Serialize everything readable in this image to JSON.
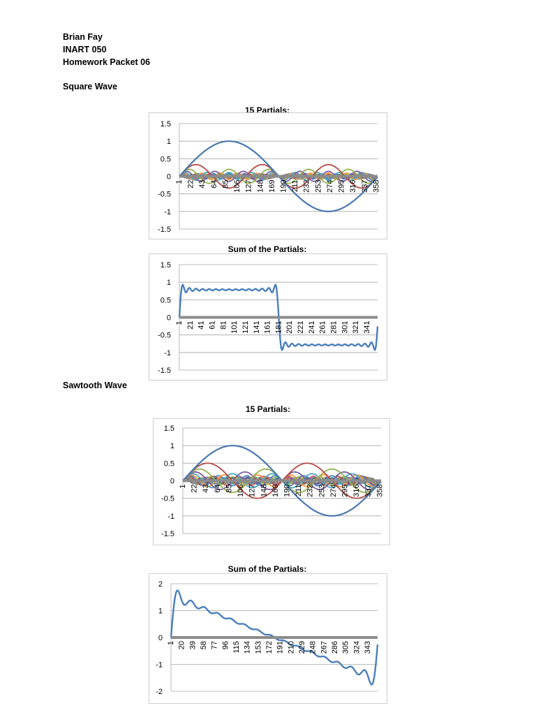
{
  "header": {
    "name": "Brian Fay",
    "course": "INART 050",
    "assignment": "Homework Packet 06"
  },
  "sections": {
    "square": "Square Wave",
    "sawtooth": "Sawtooth Wave"
  },
  "colors": {
    "series": [
      "#4a78b0",
      "#b54a45",
      "#94b24e",
      "#7b5d9e",
      "#46a6bd",
      "#f2963d",
      "#4f81bd",
      "#c0504d",
      "#9bbb59",
      "#8064a2",
      "#4bacc6",
      "#f79646",
      "#2c4d75",
      "#772c2a",
      "#5f7530"
    ],
    "sum": "#4a7ebb",
    "zero_axis": "#8c8c8c",
    "gridline": "#a6a6a6"
  },
  "chart_data": [
    {
      "id": "square-partials",
      "type": "line",
      "title": "15 Partials:",
      "wave": "square",
      "mode": "partials",
      "num_partials": 15,
      "n_points": 360,
      "ylim": [
        -1.5,
        1.5
      ],
      "yticks": [
        1.5,
        1,
        0.5,
        0,
        -0.5,
        -1,
        -1.5
      ],
      "xtick_labels": [
        "1",
        "22",
        "43",
        "64",
        "85",
        "106",
        "127",
        "148",
        "169",
        "190",
        "211",
        "232",
        "253",
        "274",
        "295",
        "316",
        "337",
        "358"
      ],
      "xtick_start": 1,
      "xtick_step": 21
    },
    {
      "id": "square-sum",
      "type": "line",
      "title": "Sum of the Partials:",
      "wave": "square",
      "mode": "sum",
      "num_partials": 15,
      "n_points": 360,
      "ylim": [
        -1.5,
        1.5
      ],
      "yticks": [
        1.5,
        1,
        0.5,
        0,
        -0.5,
        -1,
        -1.5
      ],
      "xtick_labels": [
        "1",
        "21",
        "41",
        "61",
        "81",
        "101",
        "121",
        "141",
        "161",
        "181",
        "201",
        "221",
        "241",
        "261",
        "281",
        "301",
        "321",
        "341"
      ],
      "xtick_start": 1,
      "xtick_step": 20
    },
    {
      "id": "sawtooth-partials",
      "type": "line",
      "title": "15 Partials:",
      "wave": "sawtooth",
      "mode": "partials",
      "num_partials": 15,
      "n_points": 360,
      "ylim": [
        -1.5,
        1.5
      ],
      "yticks": [
        1.5,
        1,
        0.5,
        0,
        -0.5,
        -1,
        -1.5
      ],
      "xtick_labels": [
        "1",
        "22",
        "43",
        "64",
        "85",
        "106",
        "127",
        "148",
        "169",
        "190",
        "211",
        "232",
        "253",
        "274",
        "295",
        "316",
        "337",
        "358"
      ],
      "xtick_start": 1,
      "xtick_step": 21
    },
    {
      "id": "sawtooth-sum",
      "type": "line",
      "title": "Sum of the Partials:",
      "wave": "sawtooth",
      "mode": "sum",
      "num_partials": 15,
      "n_points": 360,
      "ylim": [
        -2,
        2
      ],
      "yticks": [
        2,
        1,
        0,
        -1,
        -2
      ],
      "xtick_labels": [
        "1",
        "20",
        "39",
        "58",
        "77",
        "96",
        "115",
        "134",
        "153",
        "172",
        "191",
        "210",
        "229",
        "248",
        "267",
        "286",
        "305",
        "324",
        "343"
      ],
      "xtick_start": 1,
      "xtick_step": 19
    }
  ]
}
